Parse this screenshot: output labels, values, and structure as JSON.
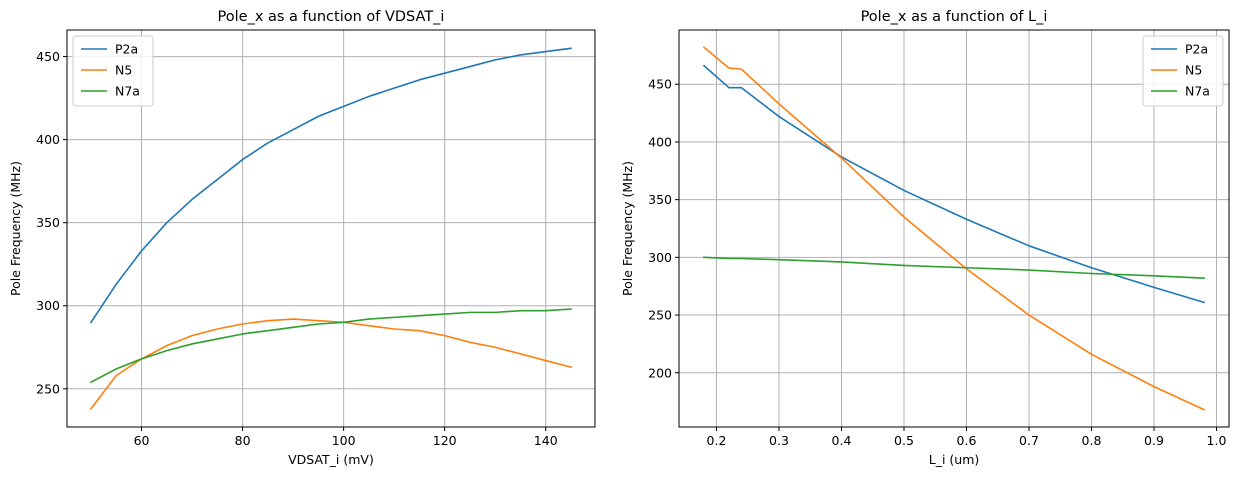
{
  "chart_data": [
    {
      "type": "line",
      "title": "Pole_x as a function of VDSAT_i",
      "xlabel": "VDSAT_i (mV)",
      "ylabel": "Pole Frequency (MHz)",
      "xlim": [
        45.25,
        149.75
      ],
      "ylim": [
        227,
        466
      ],
      "xticks": [
        60,
        80,
        100,
        120,
        140
      ],
      "yticks": [
        250,
        300,
        350,
        400,
        450
      ],
      "xtick_labels": [
        "60",
        "80",
        "100",
        "120",
        "140"
      ],
      "ytick_labels": [
        "250",
        "300",
        "350",
        "400",
        "450"
      ],
      "grid": true,
      "legend_position": "upper left",
      "series": [
        {
          "name": "P2a",
          "color": "#1f77b4",
          "x": [
            50,
            55,
            60,
            65,
            70,
            75,
            80,
            85,
            90,
            95,
            100,
            105,
            110,
            115,
            120,
            125,
            130,
            135,
            140,
            145
          ],
          "y": [
            290,
            313,
            333,
            350,
            364,
            376,
            388,
            398,
            406,
            414,
            420,
            426,
            431,
            436,
            440,
            444,
            448,
            451,
            453,
            455
          ]
        },
        {
          "name": "N5",
          "color": "#ff7f0e",
          "x": [
            50,
            55,
            60,
            65,
            70,
            75,
            80,
            85,
            90,
            95,
            100,
            105,
            110,
            115,
            120,
            125,
            130,
            135,
            140,
            145
          ],
          "y": [
            238,
            258,
            268,
            276,
            282,
            286,
            289,
            291,
            292,
            291,
            290,
            288,
            286,
            285,
            282,
            278,
            275,
            271,
            267,
            263
          ]
        },
        {
          "name": "N7a",
          "color": "#2ca02c",
          "x": [
            50,
            55,
            60,
            65,
            70,
            75,
            80,
            85,
            90,
            95,
            100,
            105,
            110,
            115,
            120,
            125,
            130,
            135,
            140,
            145
          ],
          "y": [
            254,
            262,
            268,
            273,
            277,
            280,
            283,
            285,
            287,
            289,
            290,
            292,
            293,
            294,
            295,
            296,
            296,
            297,
            297,
            298
          ]
        }
      ]
    },
    {
      "type": "line",
      "title": "Pole_x as a function of L_i",
      "xlabel": "L_i (um)",
      "ylabel": "Pole Frequency (MHz)",
      "xlim": [
        0.14,
        1.02
      ],
      "ylim": [
        153,
        497
      ],
      "xticks": [
        0.2,
        0.3,
        0.4,
        0.5,
        0.6,
        0.7,
        0.8,
        0.9,
        1.0
      ],
      "yticks": [
        200,
        250,
        300,
        350,
        400,
        450
      ],
      "xtick_labels": [
        "0.2",
        "0.3",
        "0.4",
        "0.5",
        "0.6",
        "0.7",
        "0.8",
        "0.9",
        "1.0"
      ],
      "ytick_labels": [
        "200",
        "250",
        "300",
        "350",
        "400",
        "450"
      ],
      "grid": true,
      "legend_position": "upper right",
      "series": [
        {
          "name": "P2a",
          "color": "#1f77b4",
          "x": [
            0.18,
            0.22,
            0.24,
            0.3,
            0.4,
            0.5,
            0.6,
            0.7,
            0.8,
            0.9,
            0.98
          ],
          "y": [
            466,
            447,
            447,
            422,
            387,
            358,
            333,
            310,
            291,
            274,
            261
          ]
        },
        {
          "name": "N5",
          "color": "#ff7f0e",
          "x": [
            0.18,
            0.22,
            0.24,
            0.3,
            0.4,
            0.5,
            0.6,
            0.7,
            0.8,
            0.9,
            0.98
          ],
          "y": [
            482,
            464,
            463,
            433,
            386,
            335,
            290,
            250,
            216,
            188,
            168
          ]
        },
        {
          "name": "N7a",
          "color": "#2ca02c",
          "x": [
            0.18,
            0.22,
            0.24,
            0.3,
            0.4,
            0.5,
            0.6,
            0.7,
            0.8,
            0.9,
            0.98
          ],
          "y": [
            300,
            299,
            299,
            298,
            296,
            293,
            291,
            289,
            286,
            284,
            282
          ]
        }
      ]
    }
  ]
}
